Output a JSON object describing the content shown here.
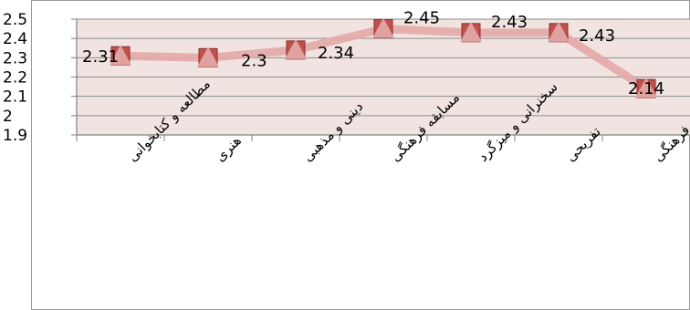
{
  "chart_data": {
    "type": "line",
    "categories": [
      "مطالعه و کتابخوانی",
      "هنری",
      "دینی و مذهبی",
      "مسابقه فرهنگی",
      "سخنرانی و میزگرد",
      "تفریحی",
      "نهادهای فرهنگی"
    ],
    "values": [
      2.31,
      2.3,
      2.34,
      2.45,
      2.43,
      2.43,
      2.14
    ],
    "data_labels": [
      "2.31",
      "2.3",
      "2.34",
      "2.45",
      "2.43",
      "2.43",
      "2.14"
    ],
    "yticks": [
      "1.9",
      "2",
      "2.1",
      "2.2",
      "2.3",
      "2.4",
      "2.5"
    ],
    "ylim": [
      1.9,
      2.5
    ],
    "grid": true,
    "legend": "none",
    "colors": {
      "plot_background": "#f1e4e0",
      "gridline": "#8c8c8c",
      "line": "#e3a8a8",
      "marker": "#c0504d",
      "marker_border": "#8b2b2a",
      "axis": "#7f7f7f",
      "text": "#000000"
    }
  }
}
